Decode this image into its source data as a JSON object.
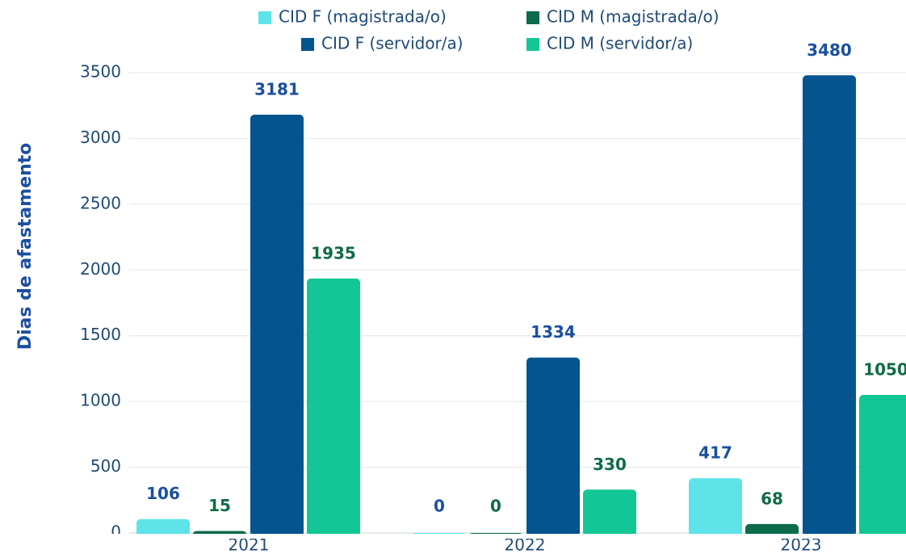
{
  "chart_data": {
    "type": "bar",
    "y_label": "Dias de afastamento",
    "categories": [
      "2021",
      "2022",
      "2023"
    ],
    "series": [
      {
        "name": "CID F (magistrada/o)",
        "color": "#5ee3e8",
        "label_color": "#1b4fa0",
        "values": [
          106,
          0,
          417
        ]
      },
      {
        "name": "CID M (magistrada/o)",
        "color": "#0b6b4b",
        "label_color": "#0f6b45",
        "values": [
          15,
          0,
          68
        ]
      },
      {
        "name": "CID F (servidor/a)",
        "color": "#03548f",
        "label_color": "#1b4fa0",
        "values": [
          3181,
          1334,
          3480
        ]
      },
      {
        "name": "CID M (servidor/a)",
        "color": "#12c795",
        "label_color": "#0f6b45",
        "values": [
          1935,
          330,
          1050
        ]
      }
    ],
    "ylim": [
      0,
      3500
    ],
    "yticks": [
      0,
      500,
      1000,
      1500,
      2000,
      2500,
      3000,
      3500
    ],
    "grid": true
  }
}
